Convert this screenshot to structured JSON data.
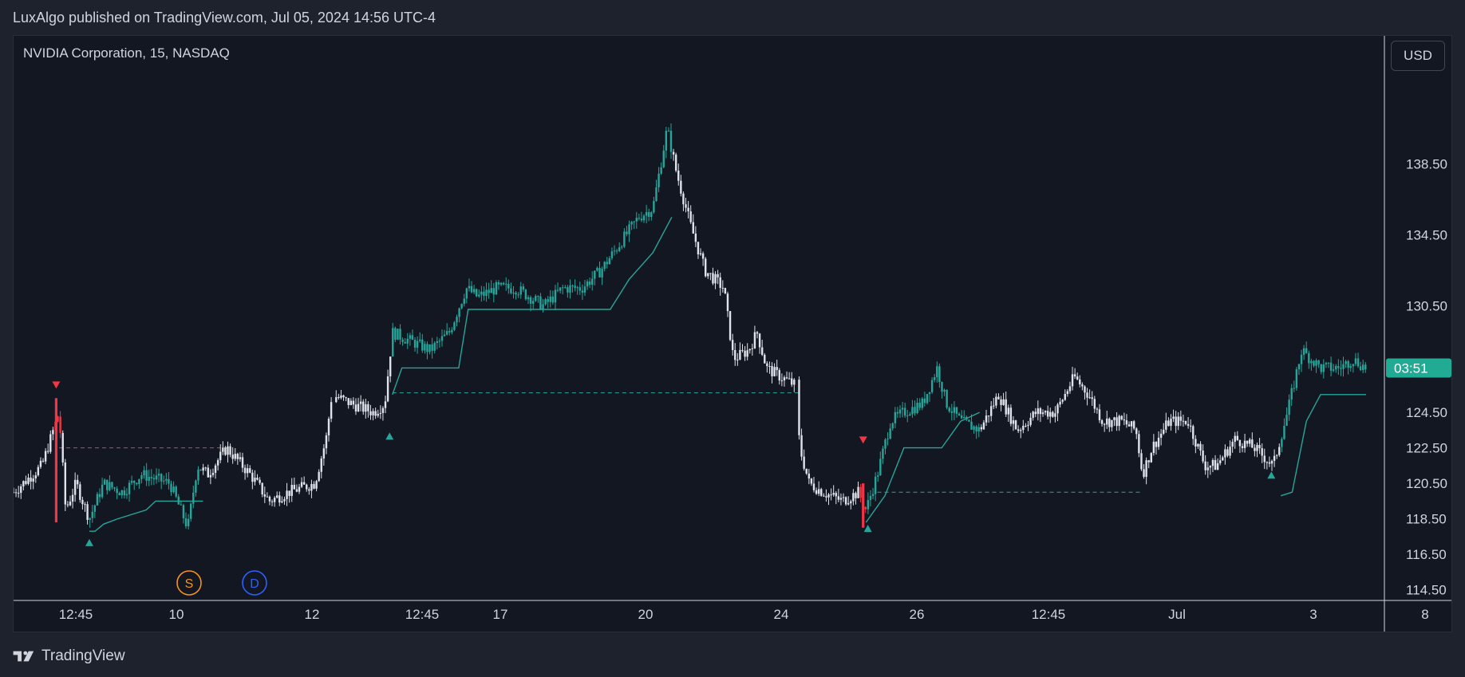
{
  "header": {
    "published_text": "LuxAlgo published on TradingView.com, Jul 05, 2024 14:56 UTC-4"
  },
  "chart": {
    "symbol_title": "NVIDIA Corporation, 15, NASDAQ",
    "currency": "USD",
    "countdown_label": "03:51",
    "markers": {
      "splits": "S",
      "dividends": "D"
    },
    "colors": {
      "background": "#131722",
      "candle_up_trend": "#26a69a",
      "candle_neutral": "#e0e3eb",
      "candle_bear_signal": "#f23645",
      "trail_line": "#26a69a",
      "countdown_badge": "#22ab94",
      "splits_marker": "#f7931a",
      "dividends_marker": "#2962ff"
    },
    "icons": [
      "tradingview-logo-icon",
      "bull-triangle-icon",
      "bear-triangle-icon"
    ]
  },
  "footer": {
    "brand": "TradingView"
  },
  "chart_data": {
    "type": "candlestick",
    "title": "NVIDIA Corporation, 15, NASDAQ",
    "interval": "15",
    "exchange": "NASDAQ",
    "currency": "USD",
    "x_tick_labels": [
      "12:45",
      "10",
      "12",
      "12:45",
      "17",
      "20",
      "24",
      "26",
      "12:45",
      "Jul",
      "3",
      "8"
    ],
    "y_tick_labels": [
      "114.50",
      "116.50",
      "118.50",
      "120.50",
      "122.50",
      "124.50",
      "130.50",
      "134.50",
      "138.50"
    ],
    "y_ticks": [
      114.5,
      116.5,
      118.5,
      120.5,
      122.5,
      124.5,
      130.5,
      134.5,
      138.5
    ],
    "ylim": [
      113.9,
      143.6
    ],
    "last_price_countdown": "03:51",
    "legend": "none",
    "grid": false,
    "series": [
      {
        "kind": "close_path_approx",
        "points": [
          [
            0,
            120
          ],
          [
            30,
            121.5
          ],
          [
            48,
            124.5
          ],
          [
            55,
            119
          ],
          [
            66,
            120.5
          ],
          [
            80,
            118.5
          ],
          [
            95,
            120.5
          ],
          [
            115,
            120
          ],
          [
            135,
            121
          ],
          [
            165,
            120.5
          ],
          [
            184,
            118
          ],
          [
            194,
            121.5
          ],
          [
            205,
            121
          ],
          [
            225,
            122.5
          ],
          [
            250,
            121
          ],
          [
            270,
            119.5
          ],
          [
            290,
            120
          ],
          [
            318,
            120.5
          ],
          [
            330,
            123
          ],
          [
            336,
            125.5
          ],
          [
            356,
            125
          ],
          [
            380,
            124.5
          ],
          [
            392,
            125
          ],
          [
            400,
            129
          ],
          [
            420,
            128.5
          ],
          [
            440,
            128
          ],
          [
            460,
            129
          ],
          [
            478,
            131.5
          ],
          [
            490,
            131
          ],
          [
            510,
            131.5
          ],
          [
            530,
            131.5
          ],
          [
            545,
            131
          ],
          [
            560,
            130.5
          ],
          [
            580,
            131.5
          ],
          [
            600,
            131.5
          ],
          [
            620,
            132.5
          ],
          [
            640,
            134
          ],
          [
            660,
            135.5
          ],
          [
            675,
            136
          ],
          [
            690,
            140.5
          ],
          [
            700,
            138
          ],
          [
            715,
            135
          ],
          [
            730,
            132.5
          ],
          [
            750,
            131.5
          ],
          [
            760,
            127.5
          ],
          [
            776,
            128
          ],
          [
            785,
            129
          ],
          [
            795,
            127
          ],
          [
            810,
            126.5
          ],
          [
            826,
            126
          ],
          [
            830,
            122.5
          ],
          [
            840,
            120.5
          ],
          [
            855,
            120
          ],
          [
            875,
            119.5
          ],
          [
            892,
            120
          ],
          [
            900,
            119
          ],
          [
            912,
            121
          ],
          [
            926,
            124
          ],
          [
            940,
            124.5
          ],
          [
            960,
            125
          ],
          [
            975,
            127
          ],
          [
            985,
            125
          ],
          [
            1000,
            124
          ],
          [
            1020,
            123.5
          ],
          [
            1040,
            125.5
          ],
          [
            1060,
            123.5
          ],
          [
            1080,
            124.5
          ],
          [
            1100,
            124.5
          ],
          [
            1120,
            126.5
          ],
          [
            1135,
            125.5
          ],
          [
            1150,
            124
          ],
          [
            1170,
            124
          ],
          [
            1185,
            123.5
          ],
          [
            1192,
            121
          ],
          [
            1202,
            122.5
          ],
          [
            1220,
            124
          ],
          [
            1240,
            124
          ],
          [
            1258,
            121.5
          ],
          [
            1270,
            121.5
          ],
          [
            1290,
            123
          ],
          [
            1310,
            122.5
          ],
          [
            1330,
            121.5
          ],
          [
            1345,
            124.5
          ],
          [
            1360,
            128
          ],
          [
            1380,
            127
          ],
          [
            1400,
            127
          ],
          [
            1414,
            127.5
          ],
          [
            1428,
            127
          ]
        ]
      },
      {
        "kind": "trailing_stop_line",
        "segments": [
          [
            [
              80,
              117.8
            ],
            [
              86,
              117.8
            ],
            [
              95,
              118.2
            ],
            [
              110,
              118.5
            ],
            [
              140,
              119
            ],
            [
              150,
              119.5
            ],
            [
              200,
              119.5
            ]
          ],
          [
            [
              400,
              125.5
            ],
            [
              410,
              127
            ],
            [
              470,
              127
            ],
            [
              480,
              130.3
            ],
            [
              630,
              130.3
            ],
            [
              650,
              132
            ],
            [
              675,
              133.5
            ],
            [
              695,
              135.5
            ]
          ],
          [
            [
              900,
              118.3
            ],
            [
              920,
              119.8
            ],
            [
              940,
              122.5
            ],
            [
              980,
              122.5
            ],
            [
              1000,
              124
            ],
            [
              1020,
              124.5
            ]
          ],
          [
            [
              1338,
              119.8
            ],
            [
              1350,
              120
            ],
            [
              1365,
              124
            ],
            [
              1380,
              125.5
            ],
            [
              1428,
              125.5
            ]
          ]
        ]
      },
      {
        "kind": "dashed_level",
        "color": "#f23645",
        "levels": [
          {
            "from": 48,
            "to": 226,
            "price": 122.5
          }
        ]
      },
      {
        "kind": "dashed_level",
        "color": "#26a69a",
        "levels": [
          {
            "from": 400,
            "to": 830,
            "price": 125.6
          },
          {
            "from": 912,
            "to": 1192,
            "price": 120
          }
        ]
      },
      {
        "kind": "signals",
        "bull_signals": [
          [
            80,
            117.5
          ],
          [
            397,
            123.5
          ],
          [
            902,
            118.3
          ],
          [
            1328,
            121.3
          ]
        ],
        "bear_signals": [
          [
            45,
            125.7
          ],
          [
            897,
            122.6
          ]
        ]
      }
    ]
  }
}
